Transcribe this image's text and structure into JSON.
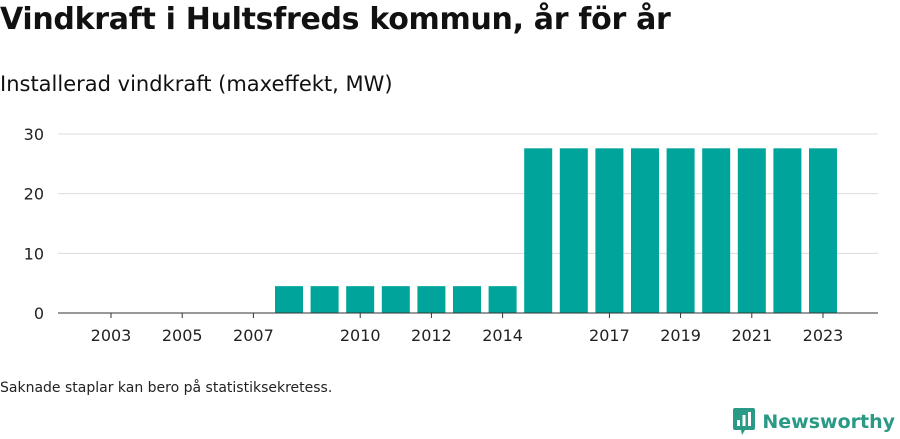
{
  "title": "Vindkraft i Hultsfreds kommun, år för år",
  "subtitle": "Installerad vindkraft (maxeffekt, MW)",
  "footnote": "Saknade staplar kan bero på statistiksekretess.",
  "brand": {
    "name": "Newsworthy",
    "icon": "newsworthy-logo-icon"
  },
  "colors": {
    "bar": "#00a49a",
    "grid": "#dcdcdc",
    "axis": "#333333",
    "brand": "#2a9a86"
  },
  "chart_data": {
    "type": "bar",
    "title": "Installerad vindkraft (maxeffekt, MW)",
    "xlabel": "",
    "ylabel": "",
    "ylim": [
      0,
      30
    ],
    "yticks": [
      0,
      10,
      20,
      30
    ],
    "categories": [
      2003,
      2004,
      2005,
      2006,
      2007,
      2008,
      2009,
      2010,
      2011,
      2012,
      2013,
      2014,
      2015,
      2016,
      2017,
      2018,
      2019,
      2020,
      2021,
      2022,
      2023
    ],
    "xtick_labels": [
      "2003",
      "2005",
      "2007",
      "2010",
      "2012",
      "2014",
      "2017",
      "2019",
      "2021",
      "2023"
    ],
    "values": [
      0,
      0,
      0,
      0,
      0,
      4.5,
      4.5,
      4.5,
      4.5,
      4.5,
      4.5,
      4.5,
      27.6,
      27.6,
      27.6,
      27.6,
      27.6,
      27.6,
      27.6,
      27.6,
      27.6
    ],
    "grid": true
  }
}
